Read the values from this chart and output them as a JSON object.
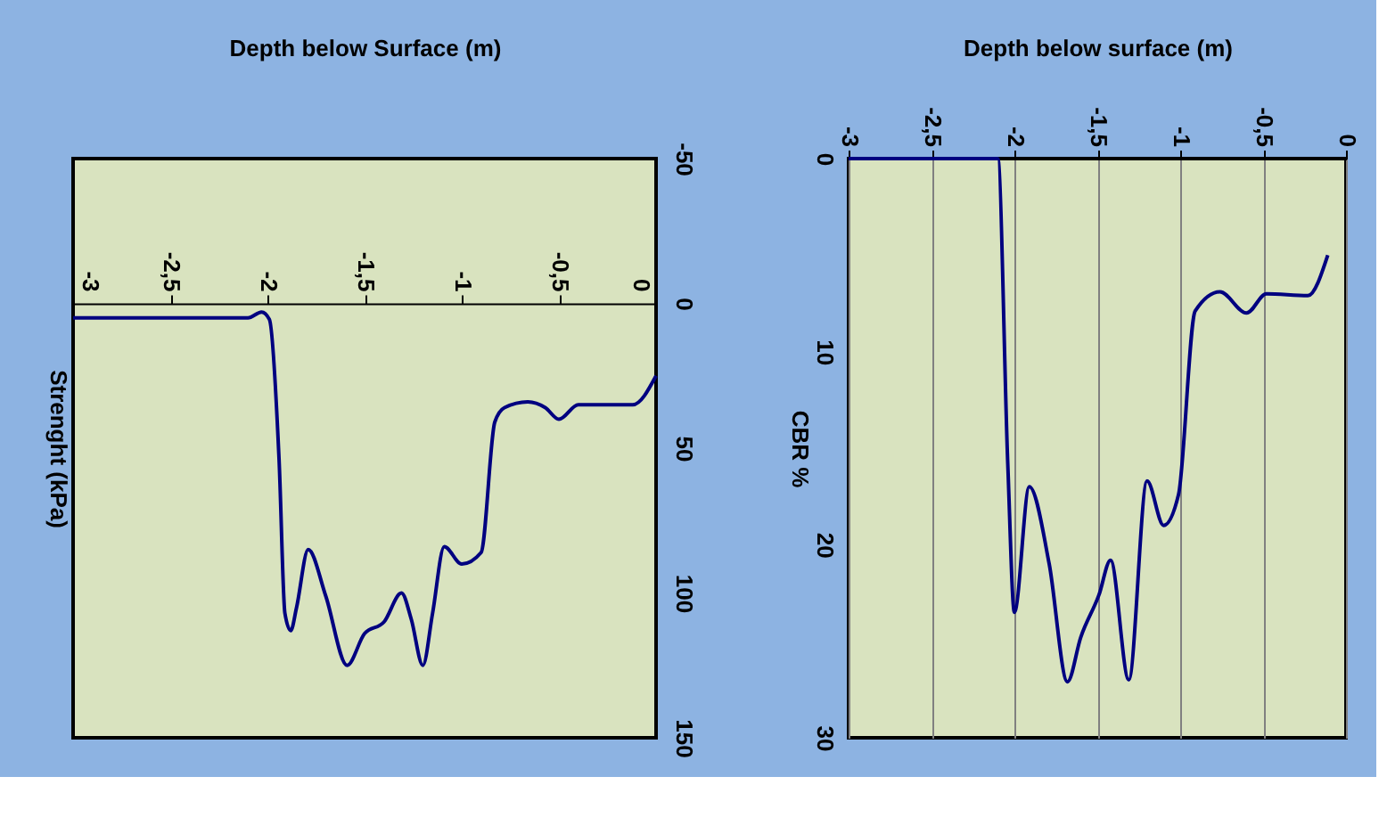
{
  "chart_data": [
    {
      "type": "line",
      "xlabel": "Depth below Surface (m)",
      "ylabel": "Strenght (kPa)",
      "xlim": [
        -3,
        0
      ],
      "xticks": [
        {
          "value": -3,
          "label": "-3"
        },
        {
          "value": -2.5,
          "label": "-2,5"
        },
        {
          "value": -2,
          "label": "-2"
        },
        {
          "value": -1.5,
          "label": "-1,5"
        },
        {
          "value": -1,
          "label": "-1"
        },
        {
          "value": -0.5,
          "label": "-0,5"
        },
        {
          "value": 0,
          "label": "0"
        }
      ],
      "ylim": [
        150,
        -50
      ],
      "yticks": [
        -50,
        0,
        50,
        100,
        150
      ],
      "grid": false,
      "line_style": "solid",
      "marker": "none",
      "series": [
        {
          "color": "#000080",
          "x": [
            -3,
            -2.1,
            -2.03,
            -1.99,
            -1.94,
            -1.91,
            -1.88,
            -1.85,
            -1.79,
            -1.7,
            -1.59,
            -1.5,
            -1.4,
            -1.31,
            -1.26,
            -1.2,
            -1.15,
            -1.09,
            -1.0,
            -0.9,
            -0.83,
            -0.78,
            -0.66,
            -0.57,
            -0.5,
            -0.4,
            -0.12,
            0
          ],
          "values": [
            5,
            5,
            3,
            5.5,
            54,
            107,
            113,
            105,
            85,
            101,
            125,
            114,
            110,
            100,
            109,
            125,
            107,
            84,
            90,
            86,
            41,
            36,
            34,
            36,
            40,
            35,
            35,
            25
          ]
        }
      ]
    },
    {
      "type": "line",
      "xlabel": "Depth below surface (m)",
      "ylabel": "CBR %",
      "xlim": [
        -3,
        0
      ],
      "xticks": [
        {
          "value": -3,
          "label": "-3"
        },
        {
          "value": -2.5,
          "label": "-2,5"
        },
        {
          "value": -2,
          "label": "-2"
        },
        {
          "value": -1.5,
          "label": "-1,5"
        },
        {
          "value": -1,
          "label": "-1"
        },
        {
          "value": -0.5,
          "label": "-0,5"
        },
        {
          "value": 0,
          "label": "0"
        }
      ],
      "ylim": [
        30,
        0
      ],
      "yticks": [
        0,
        10,
        20,
        30
      ],
      "grid": "x",
      "line_style": "solid",
      "marker": "none",
      "series": [
        {
          "color": "#000080",
          "x": [
            -3,
            -2.1,
            -2.04,
            -2.0,
            -1.91,
            -1.79,
            -1.68,
            -1.6,
            -1.49,
            -1.42,
            -1.31,
            -1.2,
            -1.1,
            -1.01,
            -0.91,
            -0.76,
            -0.6,
            -0.48,
            -0.23,
            -0.11
          ],
          "values": [
            0,
            0,
            15.8,
            23.5,
            17,
            21,
            27.1,
            24.8,
            22.6,
            20.8,
            27,
            16.7,
            19,
            17.4,
            7.9,
            6.9,
            8,
            7,
            7.1,
            5
          ]
        }
      ]
    }
  ]
}
